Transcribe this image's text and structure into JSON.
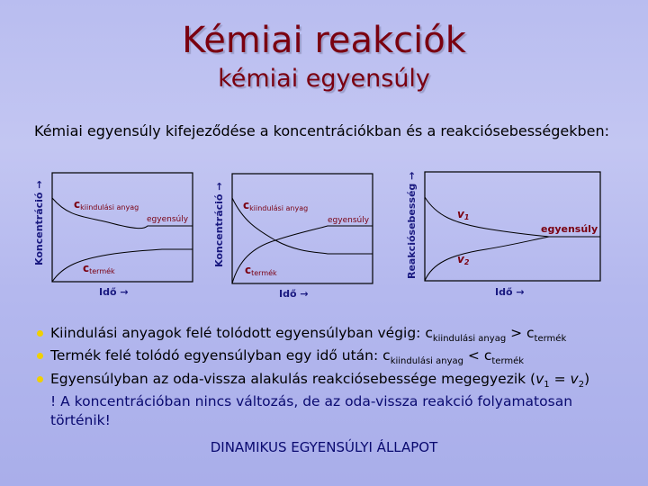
{
  "title": "Kémiai reakciók",
  "subtitle": "kémiai egyensúly",
  "intro": "Kémiai egyensúly kifejeződése a koncentrációkban és a reakciósebességekben:",
  "diagrams": [
    {
      "ylabel": "Koncentráció →",
      "xlabel": "Idő →",
      "c_label": "c",
      "top_sub": "kiindulási anyag",
      "bottom_sub": "termék",
      "eq": "egyensúly"
    },
    {
      "ylabel": "Koncentráció →",
      "xlabel": "Idő →",
      "c_label": "c",
      "top_sub": "kiindulási anyag",
      "bottom_sub": "termék",
      "eq": "egyensúly"
    },
    {
      "ylabel": "Reakciósebesség →",
      "xlabel": "Idő →",
      "top": "v",
      "top_sub": "1",
      "bottom": "v",
      "bottom_sub": "2",
      "eq": "egyensúly"
    }
  ],
  "bullets": [
    {
      "text": "Kiindulási anyagok felé tolódott egyensúlyban végig: ",
      "c": "c",
      "s1": "kiindulási anyag",
      "op": " > ",
      "c2": "c",
      "s2": "termék"
    },
    {
      "text": "Termék felé tolódó egyensúlyban egy idő után: ",
      "c": "c",
      "s1": "kiindulási anyag",
      "op": " < ",
      "c2": "c",
      "s2": "termék"
    },
    {
      "text": "Egyensúlyban az oda-vissza alakulás reakciósebessége megegyezik (",
      "v1": "v",
      "s1": "1",
      "op": " = ",
      "v2": "v",
      "s2": "2",
      "end": ")"
    }
  ],
  "note_line1": "! A koncentrációban nincs változás, de az oda-vissza reakció folyamatosan",
  "note_line2": "történik!",
  "final": "DINAMIKUS EGYENSÚLYI ÁLLAPOT",
  "colors": {
    "title": "#7a0010",
    "label": "#7a0010",
    "axis_label": "#1a1a80",
    "text": "#000000",
    "note": "#0a0a70",
    "bullet": "#f0d000"
  }
}
